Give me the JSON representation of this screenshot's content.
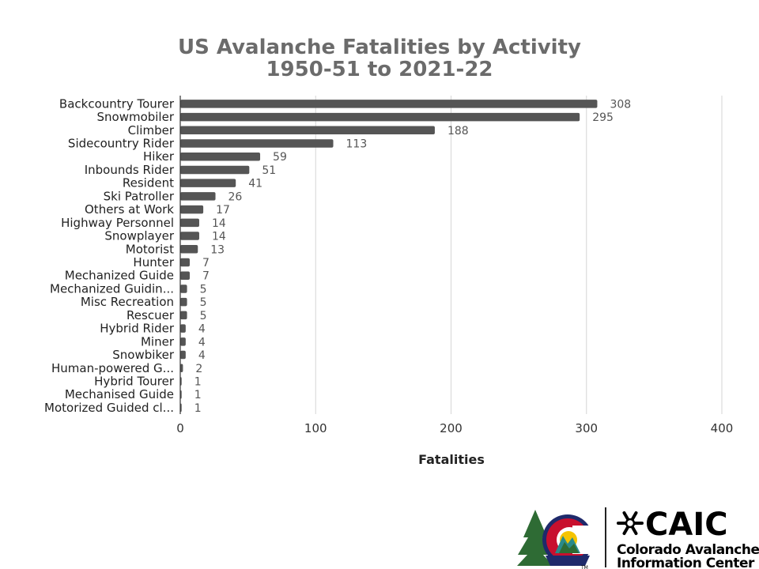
{
  "chart_data": {
    "type": "bar",
    "orientation": "horizontal",
    "title": [
      "US Avalanche Fatalities by Activity",
      "1950-51 to 2021-22"
    ],
    "xlabel": "Fatalities",
    "ylabel": "",
    "xlim": [
      0,
      400
    ],
    "xticks": [
      0,
      100,
      200,
      300,
      400
    ],
    "grid": true,
    "bar_color": "#555555",
    "categories": [
      "Backcountry Tourer",
      "Snowmobiler",
      "Climber",
      "Sidecountry Rider",
      "Hiker",
      "Inbounds Rider",
      "Resident",
      "Ski Patroller",
      "Others at Work",
      "Highway Personnel",
      "Snowplayer",
      "Motorist",
      "Hunter",
      "Mechanized Guide",
      "Mechanized Guidin...",
      "Misc Recreation",
      "Rescuer",
      "Hybrid Rider",
      "Miner",
      "Snowbiker",
      "Human-powered G...",
      "Hybrid Tourer",
      "Mechanised Guide",
      "Motorized Guided cl..."
    ],
    "values": [
      308,
      295,
      188,
      113,
      59,
      51,
      41,
      26,
      17,
      14,
      14,
      13,
      7,
      7,
      5,
      5,
      5,
      4,
      4,
      4,
      2,
      1,
      1,
      1
    ]
  },
  "logo": {
    "acronym": "CAIC",
    "line1": "Colorado Avalanche",
    "line2": "Information Center",
    "tm": "TM",
    "colors": {
      "red": "#c8102e",
      "blue": "#1f2a6b",
      "yellow": "#f5c400",
      "green": "#2e6b34",
      "teal": "#2a8a8a"
    }
  }
}
